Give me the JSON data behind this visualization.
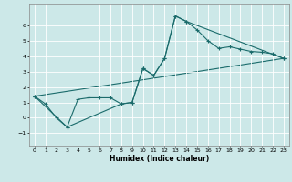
{
  "xlabel": "Humidex (Indice chaleur)",
  "ylabel": "",
  "background_color": "#cce8e8",
  "grid_color": "#ffffff",
  "line_color": "#1a6b6b",
  "marker": "+",
  "markersize": 3,
  "linewidth": 0.8,
  "xlim": [
    -0.5,
    23.5
  ],
  "ylim": [
    -1.8,
    7.4
  ],
  "xticks": [
    0,
    1,
    2,
    3,
    4,
    5,
    6,
    7,
    8,
    9,
    10,
    11,
    12,
    13,
    14,
    15,
    16,
    17,
    18,
    19,
    20,
    21,
    22,
    23
  ],
  "yticks": [
    -1,
    0,
    1,
    2,
    3,
    4,
    5,
    6
  ],
  "series": [
    {
      "x": [
        0,
        1,
        2,
        3,
        4,
        5,
        6,
        7,
        8,
        9,
        10,
        11,
        12,
        13,
        14,
        15,
        16,
        17,
        18,
        19,
        20,
        21,
        22,
        23
      ],
      "y": [
        1.4,
        0.9,
        0.0,
        -0.6,
        1.2,
        1.3,
        1.3,
        1.3,
        0.9,
        1.0,
        3.2,
        2.75,
        3.85,
        6.6,
        6.25,
        5.7,
        5.0,
        4.5,
        4.6,
        4.45,
        4.3,
        4.25,
        4.15,
        3.85
      ]
    },
    {
      "x": [
        0,
        3,
        8,
        9,
        10,
        11,
        12,
        13,
        14,
        23
      ],
      "y": [
        1.4,
        -0.6,
        0.9,
        1.0,
        3.2,
        2.75,
        3.85,
        6.6,
        6.25,
        3.85
      ]
    },
    {
      "x": [
        0,
        23
      ],
      "y": [
        1.4,
        3.85
      ]
    }
  ]
}
